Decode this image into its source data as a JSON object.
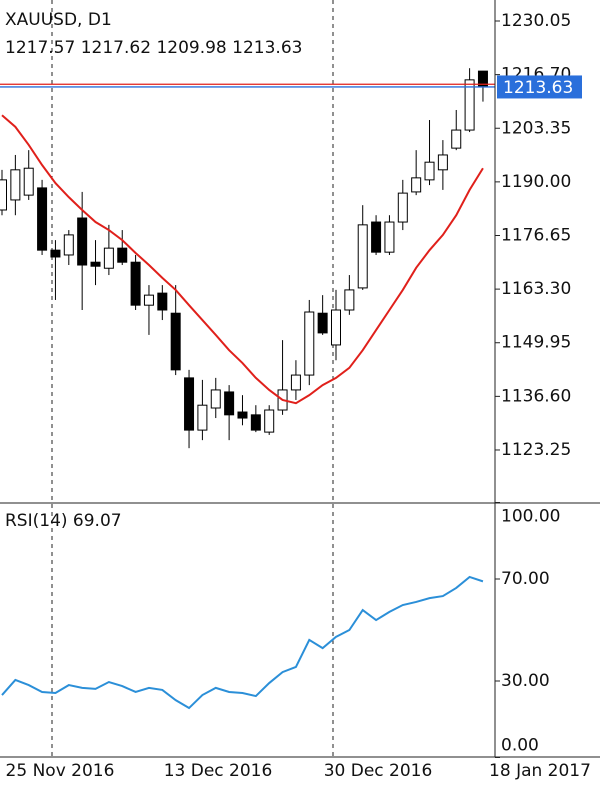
{
  "chart_data": [
    {
      "type": "candlestick",
      "title": "XAUUSD, D1",
      "open": [
        1183.0,
        1185.5,
        1186.7,
        1188.5,
        1173.0,
        1171.8,
        1181.0,
        1170.0,
        1168.5,
        1173.5,
        1170.0,
        1159.3,
        1162.3,
        1157.3,
        1141.2,
        1128.2,
        1133.7,
        1137.7,
        1132.7,
        1132.0,
        1127.7,
        1133.2,
        1138.2,
        1141.9,
        1157.3,
        1149.4,
        1158.1,
        1163.6,
        1180.0,
        1172.5,
        1180.0,
        1187.5,
        1190.5,
        1193.0,
        1198.4,
        1202.9,
        1217.57
      ],
      "high": [
        1193.0,
        1196.7,
        1197.9,
        1190.5,
        1175.5,
        1178.0,
        1187.5,
        1175.5,
        1179.3,
        1178.0,
        1171.8,
        1164.3,
        1164.3,
        1164.3,
        1143.2,
        1140.7,
        1141.2,
        1139.4,
        1136.9,
        1134.4,
        1134.4,
        1150.6,
        1145.6,
        1160.6,
        1161.8,
        1163.1,
        1166.8,
        1184.2,
        1181.7,
        1181.7,
        1190.5,
        1197.9,
        1205.4,
        1200.4,
        1207.9,
        1218.3,
        1217.62
      ],
      "low": [
        1181.7,
        1181.7,
        1185.5,
        1171.8,
        1160.6,
        1169.3,
        1158.1,
        1164.3,
        1166.8,
        1169.3,
        1158.1,
        1151.9,
        1155.6,
        1141.9,
        1123.7,
        1125.7,
        1131.2,
        1125.7,
        1129.4,
        1127.7,
        1127.0,
        1132.0,
        1135.7,
        1139.4,
        1151.9,
        1145.6,
        1156.9,
        1163.1,
        1171.8,
        1171.8,
        1178.0,
        1186.7,
        1189.2,
        1188.0,
        1197.9,
        1202.4,
        1209.98
      ],
      "close": [
        1190.5,
        1193.0,
        1193.4,
        1173.0,
        1171.3,
        1176.8,
        1169.3,
        1169.0,
        1173.5,
        1170.0,
        1159.3,
        1161.8,
        1158.1,
        1143.2,
        1128.2,
        1134.4,
        1138.2,
        1132.0,
        1131.2,
        1128.2,
        1133.2,
        1138.2,
        1141.9,
        1157.6,
        1152.4,
        1158.1,
        1163.1,
        1179.3,
        1172.5,
        1180.0,
        1187.2,
        1191.0,
        1194.9,
        1196.7,
        1202.9,
        1215.4,
        1213.63
      ],
      "up_color": "#ffffff",
      "down_color": "#000000",
      "ma": {
        "color": "#e0201b",
        "values": [
          1206.6,
          1203.7,
          1199.2,
          1194.2,
          1189.7,
          1186.2,
          1183.0,
          1180.0,
          1178.0,
          1175.5,
          1172.3,
          1169.3,
          1166.1,
          1163.1,
          1159.3,
          1155.6,
          1151.9,
          1148.1,
          1144.9,
          1141.2,
          1138.2,
          1135.7,
          1134.9,
          1136.9,
          1139.4,
          1141.2,
          1143.7,
          1148.1,
          1153.1,
          1158.1,
          1163.1,
          1168.6,
          1173.0,
          1176.8,
          1181.7,
          1188.0,
          1193.4
        ]
      },
      "ask_line": {
        "value": 1214.3,
        "color": "#e0201b"
      },
      "bid_color": "#2a6fdb",
      "ylim": [
        1110.05,
        1235.28
      ],
      "yticks": [
        1230.05,
        {
          "value": 1216.7,
          "label": "1216.70"
        },
        1203.35,
        {
          "value": 1190,
          "label": "1190.00"
        },
        1176.65,
        {
          "value": 1163.3,
          "label": "1163.30"
        },
        1149.95,
        {
          "value": 1136.6,
          "label": "1136.60"
        },
        1123.25
      ]
    },
    {
      "type": "line",
      "name": "RSI(14)",
      "color": "#2b8fd8",
      "values": [
        24.5,
        30.4,
        28.4,
        25.7,
        25.3,
        28.4,
        27.3,
        26.9,
        29.6,
        28.0,
        25.7,
        27.3,
        26.5,
        22.5,
        19.4,
        24.5,
        27.3,
        25.7,
        25.3,
        24.1,
        29.2,
        33.5,
        35.5,
        46.1,
        42.9,
        47.3,
        50.0,
        57.8,
        53.9,
        57.1,
        59.8,
        61.0,
        62.5,
        63.3,
        66.5,
        70.8,
        69.07
      ],
      "ylim": [
        0,
        100
      ],
      "yticks": [
        {
          "value": 100,
          "label": "100.00"
        },
        {
          "value": 70,
          "label": "70.00"
        },
        {
          "value": 30,
          "label": "30.00"
        },
        {
          "value": 0,
          "label": "0.00"
        }
      ],
      "x_labels": [
        "25 Nov 2016",
        "13 Dec 2016",
        "30 Dec 2016",
        "18 Jan 2017"
      ]
    }
  ]
}
